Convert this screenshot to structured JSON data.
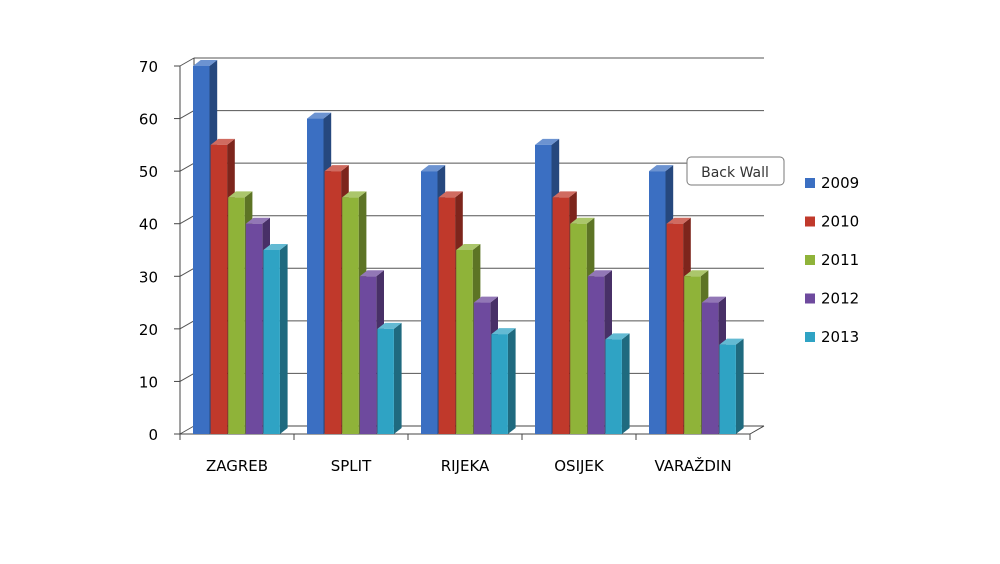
{
  "chart_data": {
    "type": "bar",
    "categories": [
      "ZAGREB",
      "SPLIT",
      "RIJEKA",
      "OSIJEK",
      "VARAŽDIN"
    ],
    "series": [
      {
        "name": "2009",
        "color": "#3b6fc2",
        "values": [
          70,
          60,
          50,
          55,
          50
        ]
      },
      {
        "name": "2010",
        "color": "#c0392b",
        "values": [
          55,
          50,
          45,
          45,
          40
        ]
      },
      {
        "name": "2011",
        "color": "#8fb339",
        "values": [
          45,
          45,
          35,
          40,
          30
        ]
      },
      {
        "name": "2012",
        "color": "#6e4a9e",
        "values": [
          40,
          30,
          25,
          30,
          25
        ]
      },
      {
        "name": "2013",
        "color": "#2fa3c4",
        "values": [
          35,
          20,
          19,
          18,
          17
        ]
      }
    ],
    "ylim": [
      0,
      70
    ],
    "yticks": [
      0,
      10,
      20,
      30,
      40,
      50,
      60,
      70
    ],
    "grid": true,
    "legend": "right",
    "tooltip": "Back Wall"
  }
}
